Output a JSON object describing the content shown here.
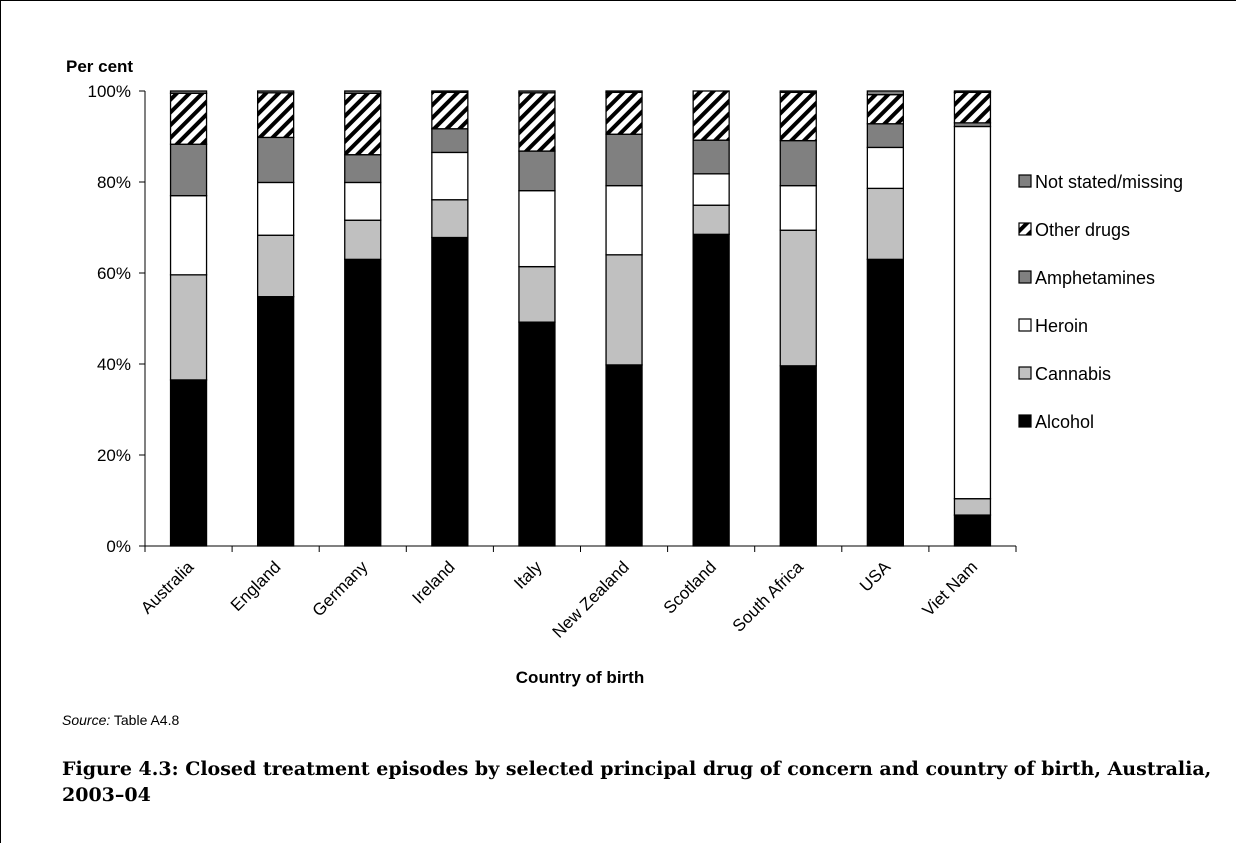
{
  "chart_data": {
    "type": "bar",
    "stacked": true,
    "ylabel": "Per cent",
    "xlabel": "Country of birth",
    "ylim": [
      0,
      100
    ],
    "yticks": [
      "0%",
      "20%",
      "40%",
      "60%",
      "80%",
      "100%"
    ],
    "categories": [
      "Australia",
      "England",
      "Germany",
      "Ireland",
      "Italy",
      "New Zealand",
      "Scotland",
      "South Africa",
      "USA",
      "Viet Nam"
    ],
    "series": [
      {
        "name": "Alcohol",
        "fill": "solid",
        "color": "#000000",
        "values": [
          36.5,
          54.8,
          63.0,
          67.8,
          49.2,
          39.8,
          68.5,
          39.6,
          63.0,
          6.8
        ]
      },
      {
        "name": "Cannabis",
        "fill": "solid",
        "color": "#c0c0c0",
        "values": [
          23.1,
          13.5,
          8.6,
          8.3,
          12.2,
          24.2,
          6.4,
          29.8,
          15.6,
          3.6
        ]
      },
      {
        "name": "Heroin",
        "fill": "solid",
        "color": "#ffffff",
        "values": [
          17.4,
          11.6,
          8.3,
          10.4,
          16.7,
          15.2,
          6.9,
          9.8,
          9.0,
          81.8
        ]
      },
      {
        "name": "Amphetamines",
        "fill": "solid",
        "color": "#808080",
        "values": [
          11.3,
          9.9,
          6.1,
          5.2,
          8.7,
          11.3,
          7.4,
          9.9,
          5.2,
          0.8
        ]
      },
      {
        "name": "Other drugs",
        "fill": "hatch",
        "color": "#000000",
        "values": [
          11.2,
          9.8,
          13.5,
          8.0,
          12.8,
          9.2,
          10.8,
          10.6,
          6.4,
          6.7
        ]
      },
      {
        "name": "Not stated/missing",
        "fill": "solid",
        "color": "#808080",
        "values": [
          0.5,
          0.4,
          0.5,
          0.3,
          0.4,
          0.3,
          0.0,
          0.3,
          0.8,
          0.3
        ]
      }
    ],
    "legend_order": [
      "Not stated/missing",
      "Other drugs",
      "Amphetamines",
      "Heroin",
      "Cannabis",
      "Alcohol"
    ],
    "legend_position": "right",
    "grid": false
  },
  "source": {
    "prefix": "Source:",
    "text": " Table A4.8"
  },
  "caption": "Figure 4.3: Closed treatment episodes by selected principal drug of concern and country of birth, Australia, 2003–04"
}
